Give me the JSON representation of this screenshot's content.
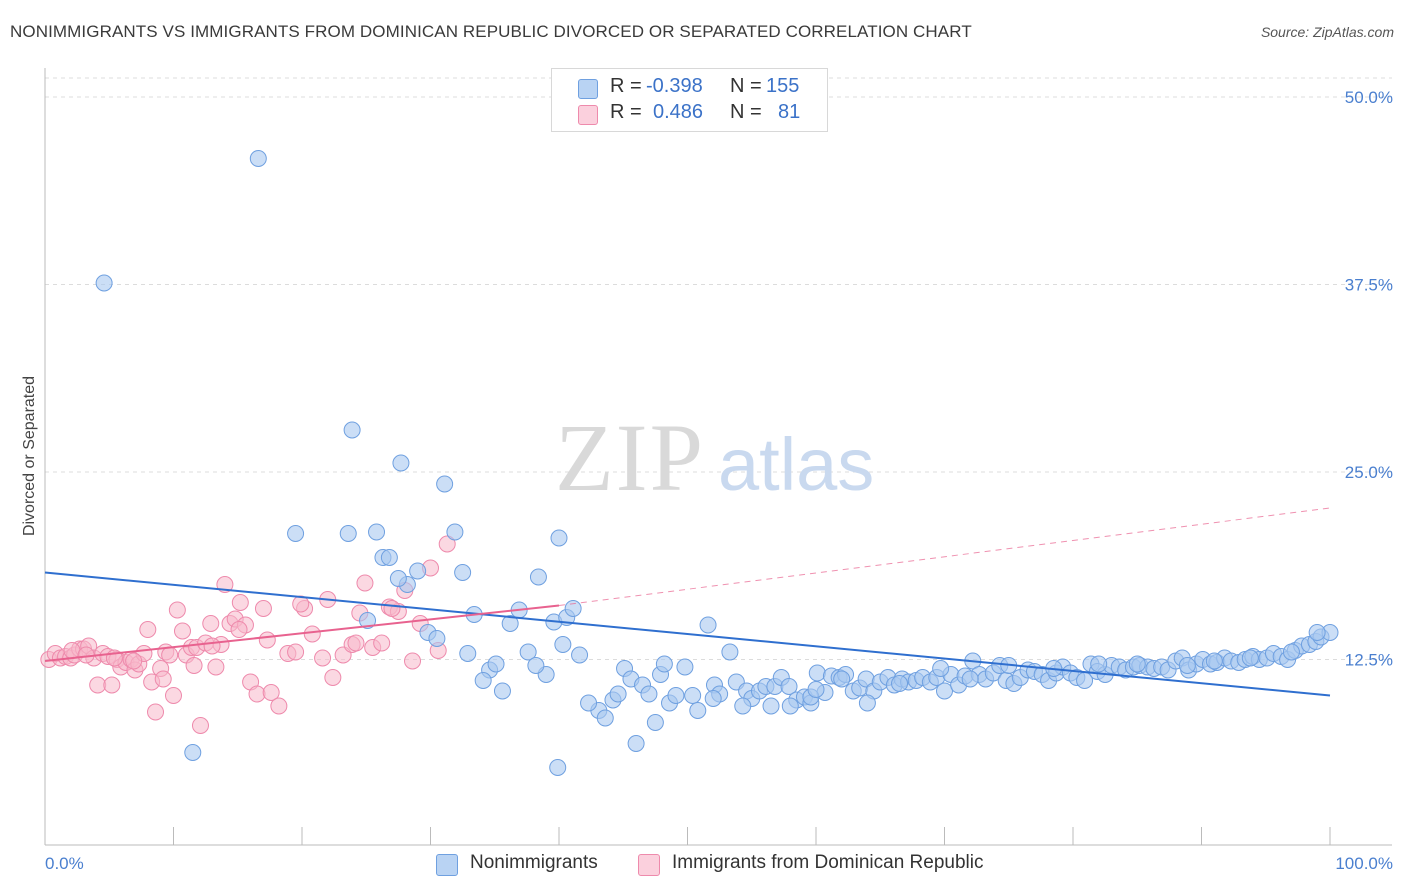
{
  "title": "NONIMMIGRANTS VS IMMIGRANTS FROM DOMINICAN REPUBLIC DIVORCED OR SEPARATED CORRELATION CHART",
  "source": "Source: ZipAtlas.com",
  "watermark": {
    "zip": "ZIP",
    "atlas": "atlas"
  },
  "legend": {
    "rows": [
      {
        "r_label": "R =",
        "r_value": "-0.398",
        "n_label": "N =",
        "n_value": "155",
        "color": "#a9c8f0"
      },
      {
        "r_label": "R =",
        "r_value": "0.486",
        "n_label": "N =",
        "n_value": "81",
        "color": "#f7b8cb"
      }
    ]
  },
  "bottom_legend": {
    "series1": "Nonimmigrants",
    "series2": "Immigrants from Dominican Republic"
  },
  "chart_data": {
    "type": "scatter",
    "xlabel": "",
    "ylabel": "Divorced or Separated",
    "xlim": [
      0,
      100
    ],
    "ylim": [
      0,
      50
    ],
    "x_tick_labels": [
      "0.0%",
      "100.0%"
    ],
    "y_ticks": [
      12.5,
      25.0,
      37.5,
      50.0
    ],
    "y_tick_labels": [
      "12.5%",
      "25.0%",
      "37.5%",
      "50.0%"
    ],
    "grid": true,
    "colors": {
      "blue": "#6fa0e0",
      "blue_fill": "#a9c8f0",
      "pink": "#ee8aac",
      "pink_fill": "#f7b8cb",
      "blue_line": "#2f6fcf",
      "pink_line": "#e8628f"
    },
    "series": [
      {
        "name": "Nonimmigrants",
        "trend": {
          "x": [
            0,
            100
          ],
          "y": [
            18.3,
            10.1
          ],
          "style": "solid"
        },
        "points": [
          [
            4.6,
            37.6
          ],
          [
            16.6,
            45.9
          ],
          [
            11.5,
            6.3
          ],
          [
            23.6,
            20.9
          ],
          [
            19.5,
            20.9
          ],
          [
            25.1,
            15.1
          ],
          [
            23.9,
            27.8
          ],
          [
            27.7,
            25.6
          ],
          [
            31.1,
            24.2
          ],
          [
            32.5,
            18.3
          ],
          [
            31.9,
            21.0
          ],
          [
            28.2,
            17.5
          ],
          [
            25.8,
            21.0
          ],
          [
            26.3,
            19.3
          ],
          [
            26.8,
            19.3
          ],
          [
            27.5,
            17.9
          ],
          [
            29.0,
            18.4
          ],
          [
            29.8,
            14.3
          ],
          [
            30.5,
            13.9
          ],
          [
            32.9,
            12.9
          ],
          [
            34.6,
            11.8
          ],
          [
            34.1,
            11.1
          ],
          [
            35.6,
            10.4
          ],
          [
            36.2,
            14.9
          ],
          [
            36.9,
            15.8
          ],
          [
            37.6,
            13.0
          ],
          [
            38.4,
            18.0
          ],
          [
            39.0,
            11.5
          ],
          [
            39.6,
            15.0
          ],
          [
            40.3,
            13.5
          ],
          [
            40.6,
            15.3
          ],
          [
            41.1,
            15.9
          ],
          [
            40.0,
            20.6
          ],
          [
            39.9,
            5.3
          ],
          [
            43.1,
            9.1
          ],
          [
            43.6,
            8.6
          ],
          [
            42.3,
            9.6
          ],
          [
            44.2,
            9.8
          ],
          [
            45.1,
            11.9
          ],
          [
            45.6,
            11.2
          ],
          [
            46.5,
            10.8
          ],
          [
            46.0,
            6.9
          ],
          [
            47.5,
            8.3
          ],
          [
            47.9,
            11.5
          ],
          [
            48.6,
            9.6
          ],
          [
            49.1,
            10.1
          ],
          [
            49.8,
            12.0
          ],
          [
            50.4,
            10.1
          ],
          [
            50.8,
            9.1
          ],
          [
            51.6,
            14.8
          ],
          [
            52.1,
            10.8
          ],
          [
            52.5,
            10.2
          ],
          [
            53.3,
            13.0
          ],
          [
            53.8,
            11.0
          ],
          [
            54.6,
            10.4
          ],
          [
            55.0,
            9.9
          ],
          [
            55.6,
            10.4
          ],
          [
            56.1,
            10.7
          ],
          [
            56.8,
            10.7
          ],
          [
            57.3,
            11.3
          ],
          [
            57.9,
            10.7
          ],
          [
            58.5,
            9.8
          ],
          [
            59.1,
            10.0
          ],
          [
            59.6,
            9.6
          ],
          [
            60.1,
            11.6
          ],
          [
            60.7,
            10.3
          ],
          [
            61.2,
            11.4
          ],
          [
            61.8,
            11.3
          ],
          [
            62.3,
            11.5
          ],
          [
            62.9,
            10.4
          ],
          [
            63.4,
            10.6
          ],
          [
            63.9,
            11.2
          ],
          [
            64.5,
            10.4
          ],
          [
            65.0,
            11.0
          ],
          [
            65.6,
            11.3
          ],
          [
            66.1,
            10.8
          ],
          [
            66.7,
            11.2
          ],
          [
            67.2,
            11.0
          ],
          [
            67.8,
            11.1
          ],
          [
            68.3,
            11.3
          ],
          [
            68.9,
            11.0
          ],
          [
            69.4,
            11.3
          ],
          [
            70.0,
            10.4
          ],
          [
            70.5,
            11.5
          ],
          [
            71.1,
            10.8
          ],
          [
            71.6,
            11.4
          ],
          [
            72.2,
            12.4
          ],
          [
            72.7,
            11.5
          ],
          [
            73.2,
            11.2
          ],
          [
            73.8,
            11.6
          ],
          [
            74.3,
            12.1
          ],
          [
            74.8,
            11.1
          ],
          [
            75.4,
            10.9
          ],
          [
            75.9,
            11.3
          ],
          [
            76.5,
            11.8
          ],
          [
            77.0,
            11.7
          ],
          [
            77.6,
            11.5
          ],
          [
            78.1,
            11.1
          ],
          [
            78.7,
            11.6
          ],
          [
            79.2,
            12.0
          ],
          [
            79.8,
            11.6
          ],
          [
            80.3,
            11.3
          ],
          [
            80.9,
            11.1
          ],
          [
            81.4,
            12.2
          ],
          [
            81.9,
            11.7
          ],
          [
            82.5,
            11.5
          ],
          [
            83.0,
            12.1
          ],
          [
            83.6,
            12.0
          ],
          [
            84.1,
            11.8
          ],
          [
            84.7,
            12.0
          ],
          [
            85.2,
            12.1
          ],
          [
            85.8,
            12.0
          ],
          [
            86.3,
            11.9
          ],
          [
            86.9,
            12.0
          ],
          [
            87.4,
            11.8
          ],
          [
            88.0,
            12.4
          ],
          [
            88.5,
            12.6
          ],
          [
            89.0,
            11.8
          ],
          [
            89.6,
            12.2
          ],
          [
            90.1,
            12.5
          ],
          [
            90.7,
            12.2
          ],
          [
            91.2,
            12.3
          ],
          [
            91.8,
            12.6
          ],
          [
            92.3,
            12.4
          ],
          [
            92.9,
            12.3
          ],
          [
            93.4,
            12.5
          ],
          [
            94.0,
            12.7
          ],
          [
            94.5,
            12.5
          ],
          [
            95.1,
            12.6
          ],
          [
            95.6,
            12.9
          ],
          [
            96.2,
            12.7
          ],
          [
            96.7,
            12.5
          ],
          [
            97.3,
            13.1
          ],
          [
            97.8,
            13.4
          ],
          [
            98.4,
            13.5
          ],
          [
            98.9,
            13.7
          ],
          [
            99.3,
            14.0
          ],
          [
            100.0,
            14.3
          ],
          [
            64.0,
            9.6
          ],
          [
            58.0,
            9.4
          ],
          [
            56.5,
            9.4
          ],
          [
            54.3,
            9.4
          ],
          [
            52.0,
            9.9
          ],
          [
            48.2,
            12.2
          ],
          [
            47.0,
            10.2
          ],
          [
            44.6,
            10.2
          ],
          [
            41.6,
            12.8
          ],
          [
            38.2,
            12.1
          ],
          [
            35.1,
            12.2
          ],
          [
            33.4,
            15.5
          ],
          [
            59.6,
            10.0
          ],
          [
            62.0,
            11.2
          ],
          [
            69.7,
            11.9
          ],
          [
            75.0,
            12.1
          ],
          [
            82.0,
            12.2
          ],
          [
            88.9,
            12.1
          ],
          [
            93.8,
            12.6
          ],
          [
            97.0,
            13.0
          ],
          [
            99.0,
            14.3
          ],
          [
            60.0,
            10.5
          ],
          [
            66.5,
            10.9
          ],
          [
            72.0,
            11.2
          ],
          [
            78.5,
            11.9
          ],
          [
            85.0,
            12.2
          ],
          [
            91.0,
            12.4
          ]
        ]
      },
      {
        "name": "Immigrants from Dominican Republic",
        "trend": {
          "x": [
            0,
            40
          ],
          "y": [
            12.4,
            16.1
          ],
          "style": "solid",
          "dashed_extension": {
            "x": [
              40,
              100
            ],
            "y": [
              16.1,
              22.6
            ]
          }
        },
        "points": [
          [
            0.3,
            12.5
          ],
          [
            0.8,
            12.9
          ],
          [
            1.2,
            12.6
          ],
          [
            1.6,
            12.7
          ],
          [
            2.0,
            12.6
          ],
          [
            2.3,
            12.8
          ],
          [
            2.7,
            13.2
          ],
          [
            3.0,
            13.2
          ],
          [
            3.4,
            13.4
          ],
          [
            3.8,
            12.6
          ],
          [
            4.1,
            10.8
          ],
          [
            4.5,
            12.9
          ],
          [
            4.9,
            12.7
          ],
          [
            5.2,
            10.8
          ],
          [
            5.6,
            12.5
          ],
          [
            5.9,
            12.0
          ],
          [
            6.3,
            12.3
          ],
          [
            6.7,
            12.5
          ],
          [
            7.0,
            11.8
          ],
          [
            7.3,
            12.2
          ],
          [
            7.7,
            12.9
          ],
          [
            8.0,
            14.5
          ],
          [
            8.3,
            11.0
          ],
          [
            8.6,
            9.0
          ],
          [
            9.0,
            11.9
          ],
          [
            9.4,
            13.0
          ],
          [
            9.7,
            12.8
          ],
          [
            10.0,
            10.1
          ],
          [
            10.3,
            15.8
          ],
          [
            10.7,
            14.4
          ],
          [
            11.0,
            12.8
          ],
          [
            11.4,
            13.3
          ],
          [
            11.8,
            13.3
          ],
          [
            12.1,
            8.1
          ],
          [
            12.5,
            13.6
          ],
          [
            12.9,
            14.9
          ],
          [
            13.3,
            12.0
          ],
          [
            13.7,
            13.5
          ],
          [
            14.0,
            17.5
          ],
          [
            14.4,
            14.9
          ],
          [
            14.8,
            15.2
          ],
          [
            15.2,
            16.3
          ],
          [
            15.6,
            14.8
          ],
          [
            16.0,
            11.0
          ],
          [
            16.5,
            10.2
          ],
          [
            17.0,
            15.9
          ],
          [
            17.6,
            10.3
          ],
          [
            18.2,
            9.4
          ],
          [
            18.9,
            12.9
          ],
          [
            19.5,
            13.0
          ],
          [
            20.2,
            15.9
          ],
          [
            20.8,
            14.2
          ],
          [
            21.6,
            12.6
          ],
          [
            22.4,
            11.3
          ],
          [
            23.2,
            12.8
          ],
          [
            23.9,
            13.5
          ],
          [
            24.5,
            15.6
          ],
          [
            24.9,
            17.6
          ],
          [
            25.5,
            13.3
          ],
          [
            26.2,
            13.6
          ],
          [
            26.8,
            16.0
          ],
          [
            27.5,
            15.7
          ],
          [
            28.0,
            17.1
          ],
          [
            28.6,
            12.4
          ],
          [
            29.2,
            14.9
          ],
          [
            30.0,
            18.6
          ],
          [
            30.6,
            13.1
          ],
          [
            31.3,
            20.2
          ],
          [
            2.1,
            13.1
          ],
          [
            3.2,
            12.8
          ],
          [
            5.4,
            12.6
          ],
          [
            6.9,
            12.4
          ],
          [
            9.2,
            11.2
          ],
          [
            11.6,
            12.1
          ],
          [
            13.0,
            13.4
          ],
          [
            15.1,
            14.5
          ],
          [
            17.3,
            13.8
          ],
          [
            19.9,
            16.2
          ],
          [
            22.0,
            16.5
          ],
          [
            24.2,
            13.6
          ],
          [
            27.0,
            15.9
          ]
        ]
      }
    ]
  }
}
